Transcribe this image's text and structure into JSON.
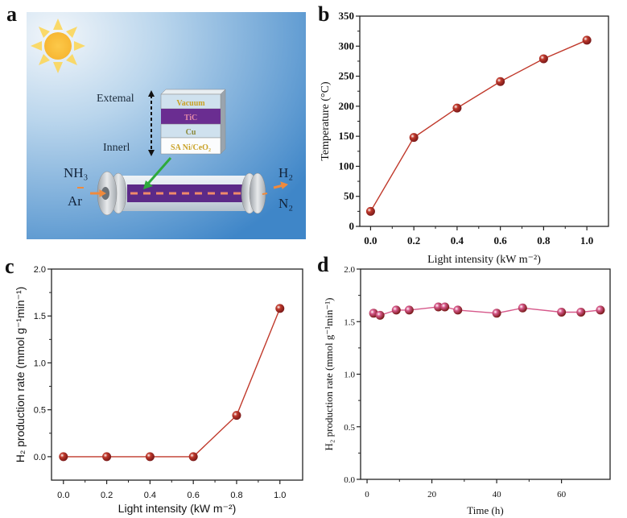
{
  "figure": {
    "panel_labels": [
      "a",
      "b",
      "c",
      "d"
    ]
  },
  "schematic": {
    "layers": [
      "Vacuum",
      "TiC",
      "Cu",
      "SA Ni/CeO₂"
    ],
    "label_external": "Extemal",
    "label_inner": "Innerl",
    "inlet_top": "NH₃",
    "inlet_bottom": "Ar",
    "outlet_top": "H₂",
    "outlet_bottom": "N₂",
    "icons": [
      "sun-icon",
      "double-arrow-icon",
      "green-arrow-icon",
      "tube-reactor-icon"
    ],
    "colors": {
      "sky_light": "#e6f0f8",
      "sky_dark": "#3f89cc",
      "sun": "#fbc93a",
      "tic_layer": "#6a2d91",
      "layer_text": "#c9a227",
      "tic_text": "#e08aa0",
      "gas_flow": "#f08a3c",
      "pointer": "#2eaa3c"
    }
  },
  "chart_data": [
    {
      "panel": "b",
      "type": "line",
      "title": "",
      "xlabel": "Light intensity (kW m⁻²)",
      "ylabel": "Temperature (°C)",
      "x": [
        0.0,
        0.2,
        0.4,
        0.6,
        0.8,
        1.0
      ],
      "series": [
        {
          "name": "Temperature",
          "values": [
            25,
            148,
            197,
            241,
            279,
            310
          ],
          "color": "#c0392b"
        }
      ],
      "xlim": [
        -0.05,
        1.1
      ],
      "ylim": [
        0,
        350
      ],
      "xticks": [
        "0.0",
        "0.2",
        "0.4",
        "0.6",
        "0.8",
        "1.0"
      ],
      "xtick_values": [
        0.0,
        0.2,
        0.4,
        0.6,
        0.8,
        1.0
      ],
      "yticks": [
        "0",
        "50",
        "100",
        "150",
        "200",
        "250",
        "300",
        "350"
      ],
      "ytick_values": [
        0,
        50,
        100,
        150,
        200,
        250,
        300,
        350
      ],
      "grid": false,
      "legend": "none"
    },
    {
      "panel": "c",
      "type": "line",
      "title": "",
      "xlabel": "Light intensity (kW m⁻²)",
      "ylabel": "H₂ production rate (mmol g⁻¹min⁻¹)",
      "x": [
        0.0,
        0.2,
        0.4,
        0.6,
        0.8,
        1.0
      ],
      "series": [
        {
          "name": "H2 production rate",
          "values": [
            0.0,
            0.0,
            0.0,
            0.0,
            0.44,
            1.58
          ],
          "color": "#c0392b"
        }
      ],
      "xlim": [
        -0.055,
        1.105
      ],
      "ylim": [
        -0.25,
        2.0
      ],
      "xticks": [
        "0.0",
        "0.2",
        "0.4",
        "0.6",
        "0.8",
        "1.0"
      ],
      "xtick_values": [
        0.0,
        0.2,
        0.4,
        0.6,
        0.8,
        1.0
      ],
      "yticks": [
        "0.0",
        "0.5",
        "1.0",
        "1.5",
        "2.0"
      ],
      "ytick_values": [
        0.0,
        0.5,
        1.0,
        1.5,
        2.0
      ],
      "grid": false,
      "legend": "none"
    },
    {
      "panel": "d",
      "type": "line",
      "title": "",
      "xlabel": "Time (h)",
      "ylabel": "H₂ production rate (mmol g⁻¹min⁻¹)",
      "x": [
        2,
        4,
        9,
        13,
        22,
        24,
        28,
        40,
        48,
        60,
        66,
        72
      ],
      "series": [
        {
          "name": "H2 production rate",
          "values": [
            1.58,
            1.56,
            1.61,
            1.61,
            1.64,
            1.64,
            1.61,
            1.58,
            1.63,
            1.59,
            1.59,
            1.61
          ],
          "color": "#d6588a"
        }
      ],
      "xlim": [
        -2,
        75
      ],
      "ylim": [
        0.0,
        2.0
      ],
      "xticks": [
        "0",
        "20",
        "40",
        "60"
      ],
      "xtick_values": [
        0,
        20,
        40,
        60
      ],
      "yticks": [
        "0.0",
        "0.5",
        "1.0",
        "1.5",
        "2.0"
      ],
      "ytick_values": [
        0.0,
        0.5,
        1.0,
        1.5,
        2.0
      ],
      "grid": false,
      "legend": "none"
    }
  ]
}
